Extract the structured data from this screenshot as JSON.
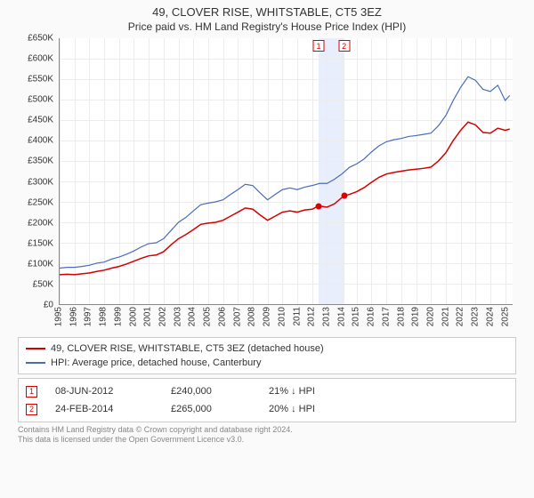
{
  "title_line1": "49, CLOVER RISE, WHITSTABLE, CT5 3EZ",
  "title_line2": "Price paid vs. HM Land Registry's House Price Index (HPI)",
  "chart": {
    "type": "line",
    "background_color": "#ffffff",
    "grid_color": "#ececec",
    "axis_color": "#888888",
    "font_size_tick": 10,
    "xlim": [
      1995,
      2025.5
    ],
    "ylim": [
      0,
      650000
    ],
    "ytick_step": 50000,
    "ytick_prefix": "£",
    "ytick_suffix": "K",
    "yticks": [
      {
        "v": 0,
        "label": "£0"
      },
      {
        "v": 50000,
        "label": "£50K"
      },
      {
        "v": 100000,
        "label": "£100K"
      },
      {
        "v": 150000,
        "label": "£150K"
      },
      {
        "v": 200000,
        "label": "£200K"
      },
      {
        "v": 250000,
        "label": "£250K"
      },
      {
        "v": 300000,
        "label": "£300K"
      },
      {
        "v": 350000,
        "label": "£350K"
      },
      {
        "v": 400000,
        "label": "£400K"
      },
      {
        "v": 450000,
        "label": "£450K"
      },
      {
        "v": 500000,
        "label": "£500K"
      },
      {
        "v": 550000,
        "label": "£550K"
      },
      {
        "v": 600000,
        "label": "£600K"
      },
      {
        "v": 650000,
        "label": "£650K"
      }
    ],
    "xticks": [
      1995,
      1996,
      1997,
      1998,
      1999,
      2000,
      2001,
      2002,
      2003,
      2004,
      2005,
      2006,
      2007,
      2008,
      2009,
      2010,
      2011,
      2012,
      2013,
      2014,
      2015,
      2016,
      2017,
      2018,
      2019,
      2020,
      2021,
      2022,
      2023,
      2024,
      2025
    ],
    "band": {
      "from": 2012.44,
      "to": 2014.15,
      "color": "#e8eefc"
    },
    "series": [
      {
        "id": "property",
        "label": "49, CLOVER RISE, WHITSTABLE, CT5 3EZ (detached house)",
        "color": "#d40000",
        "line_width": 1.5,
        "data": [
          [
            1995,
            72000
          ],
          [
            1995.5,
            73000
          ],
          [
            1996,
            72000
          ],
          [
            1996.5,
            74000
          ],
          [
            1997,
            76000
          ],
          [
            1997.5,
            80000
          ],
          [
            1998,
            83000
          ],
          [
            1998.5,
            88000
          ],
          [
            1999,
            92000
          ],
          [
            1999.5,
            98000
          ],
          [
            2000,
            105000
          ],
          [
            2000.5,
            112000
          ],
          [
            2001,
            118000
          ],
          [
            2001.5,
            120000
          ],
          [
            2002,
            128000
          ],
          [
            2002.5,
            145000
          ],
          [
            2003,
            160000
          ],
          [
            2003.5,
            170000
          ],
          [
            2004,
            182000
          ],
          [
            2004.5,
            195000
          ],
          [
            2005,
            198000
          ],
          [
            2005.5,
            200000
          ],
          [
            2006,
            205000
          ],
          [
            2006.5,
            215000
          ],
          [
            2007,
            225000
          ],
          [
            2007.5,
            235000
          ],
          [
            2008,
            232000
          ],
          [
            2008.5,
            218000
          ],
          [
            2009,
            205000
          ],
          [
            2009.5,
            215000
          ],
          [
            2010,
            225000
          ],
          [
            2010.5,
            228000
          ],
          [
            2011,
            225000
          ],
          [
            2011.5,
            230000
          ],
          [
            2012,
            232000
          ],
          [
            2012.44,
            240000
          ],
          [
            2013,
            237000
          ],
          [
            2013.5,
            245000
          ],
          [
            2014.15,
            265000
          ],
          [
            2014.5,
            268000
          ],
          [
            2015,
            275000
          ],
          [
            2015.5,
            285000
          ],
          [
            2016,
            298000
          ],
          [
            2016.5,
            310000
          ],
          [
            2017,
            318000
          ],
          [
            2017.5,
            322000
          ],
          [
            2018,
            325000
          ],
          [
            2018.5,
            328000
          ],
          [
            2019,
            330000
          ],
          [
            2019.5,
            332000
          ],
          [
            2020,
            335000
          ],
          [
            2020.5,
            350000
          ],
          [
            2021,
            370000
          ],
          [
            2021.5,
            400000
          ],
          [
            2022,
            425000
          ],
          [
            2022.5,
            445000
          ],
          [
            2023,
            438000
          ],
          [
            2023.5,
            420000
          ],
          [
            2024,
            418000
          ],
          [
            2024.5,
            430000
          ],
          [
            2025,
            425000
          ],
          [
            2025.3,
            428000
          ]
        ]
      },
      {
        "id": "hpi",
        "label": "HPI: Average price, detached house, Canterbury",
        "color": "#4a6db8",
        "line_width": 1.2,
        "data": [
          [
            1995,
            88000
          ],
          [
            1995.5,
            90000
          ],
          [
            1996,
            90000
          ],
          [
            1996.5,
            92000
          ],
          [
            1997,
            95000
          ],
          [
            1997.5,
            100000
          ],
          [
            1998,
            103000
          ],
          [
            1998.5,
            110000
          ],
          [
            1999,
            115000
          ],
          [
            1999.5,
            122000
          ],
          [
            2000,
            130000
          ],
          [
            2000.5,
            140000
          ],
          [
            2001,
            148000
          ],
          [
            2001.5,
            150000
          ],
          [
            2002,
            160000
          ],
          [
            2002.5,
            180000
          ],
          [
            2003,
            200000
          ],
          [
            2003.5,
            212000
          ],
          [
            2004,
            228000
          ],
          [
            2004.5,
            243000
          ],
          [
            2005,
            247000
          ],
          [
            2005.5,
            250000
          ],
          [
            2006,
            255000
          ],
          [
            2006.5,
            268000
          ],
          [
            2007,
            280000
          ],
          [
            2007.5,
            293000
          ],
          [
            2008,
            290000
          ],
          [
            2008.5,
            272000
          ],
          [
            2009,
            255000
          ],
          [
            2009.5,
            268000
          ],
          [
            2010,
            280000
          ],
          [
            2010.5,
            284000
          ],
          [
            2011,
            280000
          ],
          [
            2011.5,
            286000
          ],
          [
            2012,
            290000
          ],
          [
            2012.5,
            295000
          ],
          [
            2013,
            295000
          ],
          [
            2013.5,
            305000
          ],
          [
            2014,
            318000
          ],
          [
            2014.5,
            334000
          ],
          [
            2015,
            343000
          ],
          [
            2015.5,
            355000
          ],
          [
            2016,
            372000
          ],
          [
            2016.5,
            387000
          ],
          [
            2017,
            397000
          ],
          [
            2017.5,
            402000
          ],
          [
            2018,
            405000
          ],
          [
            2018.5,
            410000
          ],
          [
            2019,
            412000
          ],
          [
            2019.5,
            415000
          ],
          [
            2020,
            418000
          ],
          [
            2020.5,
            436000
          ],
          [
            2021,
            461000
          ],
          [
            2021.5,
            498000
          ],
          [
            2022,
            530000
          ],
          [
            2022.5,
            556000
          ],
          [
            2023,
            547000
          ],
          [
            2023.5,
            525000
          ],
          [
            2024,
            520000
          ],
          [
            2024.5,
            535000
          ],
          [
            2025,
            498000
          ],
          [
            2025.3,
            510000
          ]
        ]
      }
    ],
    "sale_markers": [
      {
        "n": "1",
        "x": 2012.44,
        "price": 240000
      },
      {
        "n": "2",
        "x": 2014.15,
        "price": 265000
      }
    ]
  },
  "legend": {
    "items": [
      {
        "color": "#d40000",
        "label": "49, CLOVER RISE, WHITSTABLE, CT5 3EZ (detached house)"
      },
      {
        "color": "#4a6db8",
        "label": "HPI: Average price, detached house, Canterbury"
      }
    ]
  },
  "sales_table": {
    "rows": [
      {
        "n": "1",
        "date": "08-JUN-2012",
        "price": "£240,000",
        "diff": "21% ↓ HPI"
      },
      {
        "n": "2",
        "date": "24-FEB-2014",
        "price": "£265,000",
        "diff": "20% ↓ HPI"
      }
    ]
  },
  "footer_line1": "Contains HM Land Registry data © Crown copyright and database right 2024.",
  "footer_line2": "This data is licensed under the Open Government Licence v3.0."
}
